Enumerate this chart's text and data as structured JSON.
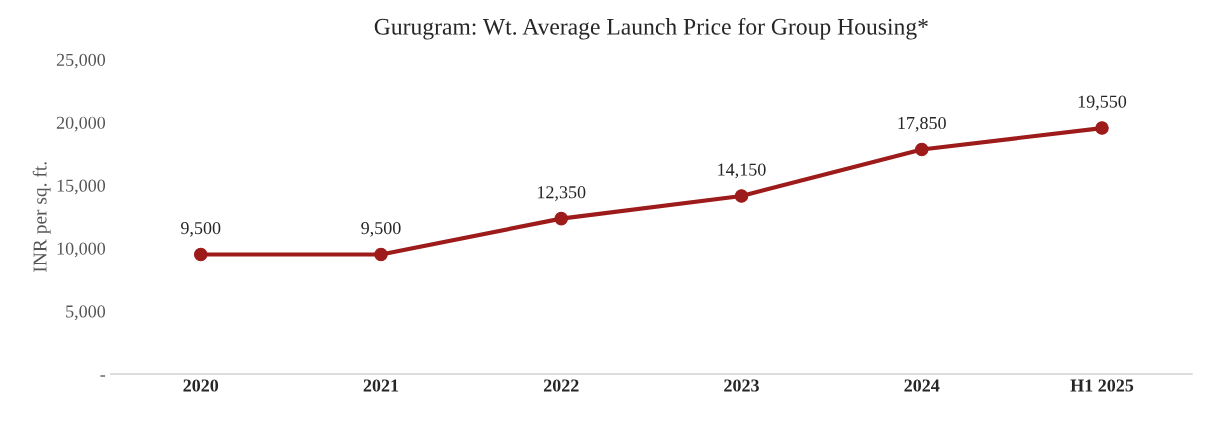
{
  "chart_data": {
    "type": "line",
    "title": "Gurugram: Wt. Average Launch Price for Group Housing*",
    "ylabel": "INR per sq. ft.",
    "categories": [
      "2020",
      "2021",
      "2022",
      "2023",
      "2024",
      "H1 2025"
    ],
    "series": [
      {
        "color": "#9e1b1b",
        "values": [
          9500,
          9500,
          12350,
          14150,
          17850,
          19550
        ]
      }
    ],
    "value_labels": [
      "9,500",
      "9,500",
      "12,350",
      "14,150",
      "17,850",
      "19,550"
    ],
    "ylim": [
      0,
      25000
    ],
    "yticks": [
      {
        "value": 0,
        "label": "-"
      },
      {
        "value": 5000,
        "label": "5,000"
      },
      {
        "value": 10000,
        "label": "10,000"
      },
      {
        "value": 15000,
        "label": "15,000"
      },
      {
        "value": 20000,
        "label": "20,000"
      },
      {
        "value": 25000,
        "label": "25,000"
      }
    ],
    "grid": false,
    "legend": false,
    "marker": "circle",
    "line_style": "solid"
  }
}
